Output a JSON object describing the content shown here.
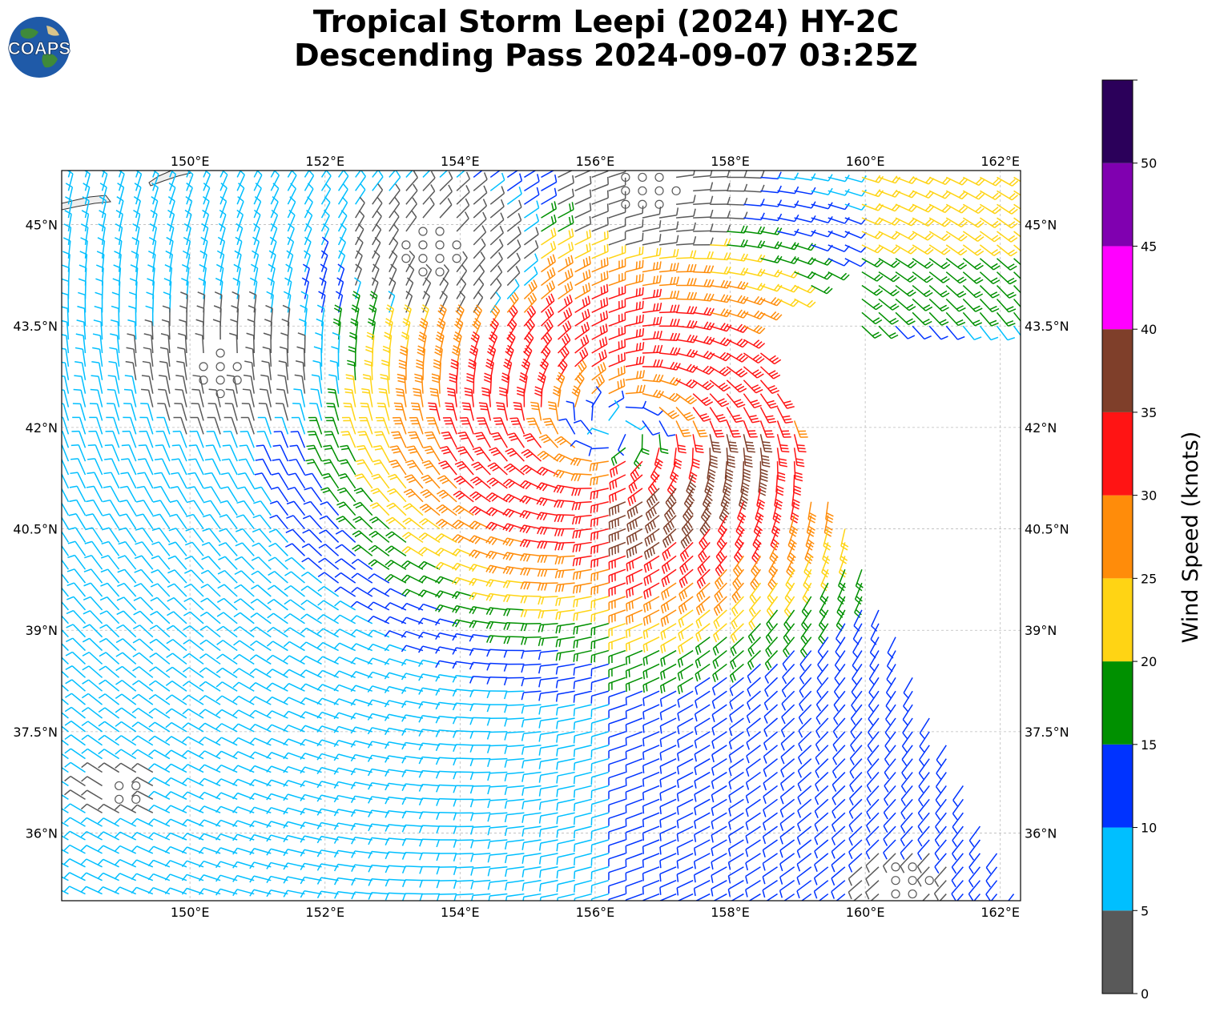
{
  "title": {
    "line1": "Tropical Storm Leepi (2024) HY-2C",
    "line2": "Descending Pass 2024-09-07 03:25Z"
  },
  "logo": {
    "text": "COAPS",
    "icon": "globe-icon"
  },
  "map": {
    "lon_range": [
      148.1,
      162.3
    ],
    "lat_range": [
      35.0,
      45.8
    ],
    "lon_ticks": [
      {
        "value": 150,
        "label": "150°E"
      },
      {
        "value": 152,
        "label": "152°E"
      },
      {
        "value": 154,
        "label": "154°E"
      },
      {
        "value": 156,
        "label": "156°E"
      },
      {
        "value": 158,
        "label": "158°E"
      },
      {
        "value": 160,
        "label": "160°E"
      },
      {
        "value": 162,
        "label": "162°E"
      }
    ],
    "lat_ticks": [
      {
        "value": 45,
        "label": "45°N"
      },
      {
        "value": 43.5,
        "label": "43.5°N"
      },
      {
        "value": 42,
        "label": "42°N"
      },
      {
        "value": 40.5,
        "label": "40.5°N"
      },
      {
        "value": 39,
        "label": "39°N"
      },
      {
        "value": 37.5,
        "label": "37.5°N"
      },
      {
        "value": 36,
        "label": "36°N"
      }
    ],
    "grid": true,
    "storm_center": {
      "lon": 156.3,
      "lat": 42.0
    },
    "swath_corners": [
      [
        158.3,
        43.5
      ],
      [
        162.3,
        45.8
      ],
      [
        162.3,
        35.0
      ]
    ],
    "data_gaps": [
      {
        "lon": [
          159.1,
          162.3
        ],
        "lat": [
          40.9,
          43.3
        ]
      }
    ],
    "calm_zones": [
      {
        "lon": 150.5,
        "lat": 42.8,
        "r": 1.3
      },
      {
        "lon": 153.6,
        "lat": 44.6,
        "r": 1.1
      },
      {
        "lon": 156.8,
        "lat": 45.5,
        "r": 1.0
      },
      {
        "lon": 149.0,
        "lat": 36.6,
        "r": 0.5
      },
      {
        "lon": 160.6,
        "lat": 35.3,
        "r": 0.6
      }
    ]
  },
  "colorbar": {
    "label": "Wind Speed (knots)",
    "ticks": [
      0,
      5,
      10,
      15,
      20,
      25,
      30,
      35,
      40,
      45,
      50
    ],
    "bins": [
      {
        "min": 0,
        "max": 5,
        "color": "#595959"
      },
      {
        "min": 5,
        "max": 10,
        "color": "#00bfff"
      },
      {
        "min": 10,
        "max": 15,
        "color": "#0033ff"
      },
      {
        "min": 15,
        "max": 20,
        "color": "#009000"
      },
      {
        "min": 20,
        "max": 25,
        "color": "#ffd414"
      },
      {
        "min": 25,
        "max": 30,
        "color": "#ff8c0a"
      },
      {
        "min": 30,
        "max": 35,
        "color": "#ff1414"
      },
      {
        "min": 35,
        "max": 40,
        "color": "#7f3f2a"
      },
      {
        "min": 40,
        "max": 45,
        "color": "#ff00ff"
      },
      {
        "min": 45,
        "max": 50,
        "color": "#8000b0"
      },
      {
        "min": 50,
        "max": 55,
        "color": "#2b005a"
      }
    ],
    "range": [
      0,
      55
    ]
  }
}
